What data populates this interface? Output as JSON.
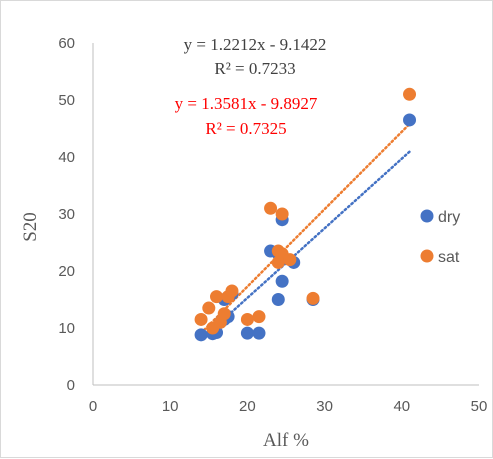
{
  "chart_data": {
    "type": "scatter",
    "xlabel": "Alf %",
    "ylabel": "S20",
    "xlim": [
      0,
      50
    ],
    "ylim": [
      0,
      60
    ],
    "x_ticks": [
      "0",
      "10",
      "20",
      "30",
      "40",
      "50"
    ],
    "y_ticks": [
      "0",
      "10",
      "20",
      "30",
      "40",
      "50",
      "60"
    ],
    "grid": false,
    "legend_position": "right",
    "series": [
      {
        "name": "dry",
        "color": "#4472c4",
        "points": [
          [
            14.0,
            8.8
          ],
          [
            15.5,
            9.0
          ],
          [
            16.0,
            9.2
          ],
          [
            16.5,
            11.0
          ],
          [
            17.0,
            11.5
          ],
          [
            17.5,
            12.0
          ],
          [
            17.0,
            15.0
          ],
          [
            18.0,
            16.0
          ],
          [
            20.0,
            9.1
          ],
          [
            21.5,
            9.1
          ],
          [
            23.0,
            23.5
          ],
          [
            24.0,
            15.0
          ],
          [
            24.0,
            23.0
          ],
          [
            24.5,
            18.2
          ],
          [
            24.5,
            29.0
          ],
          [
            26.0,
            21.5
          ],
          [
            28.5,
            15.0
          ],
          [
            41.0,
            46.5
          ]
        ],
        "trendline": {
          "slope": 1.2212,
          "intercept": -9.1422,
          "equation": "y = 1.2212x - 9.1422",
          "r2": "R² = 0.7233",
          "text_color": "#404040"
        }
      },
      {
        "name": "sat",
        "color": "#ed7d31",
        "points": [
          [
            14.0,
            11.5
          ],
          [
            15.0,
            13.5
          ],
          [
            15.5,
            10.0
          ],
          [
            16.0,
            15.5
          ],
          [
            16.5,
            11.0
          ],
          [
            17.0,
            12.5
          ],
          [
            17.5,
            15.5
          ],
          [
            18.0,
            16.5
          ],
          [
            20.0,
            11.5
          ],
          [
            21.5,
            12.0
          ],
          [
            23.0,
            31.0
          ],
          [
            24.0,
            21.5
          ],
          [
            24.0,
            23.5
          ],
          [
            24.5,
            30.0
          ],
          [
            24.5,
            23.0
          ],
          [
            25.5,
            22.0
          ],
          [
            28.5,
            15.2
          ],
          [
            41.0,
            51.0
          ]
        ],
        "trendline": {
          "slope": 1.3581,
          "intercept": -9.8927,
          "equation": "y = 1.3581x - 9.8927",
          "r2": "R² = 0.7325",
          "text_color": "#ff0000"
        }
      }
    ]
  }
}
